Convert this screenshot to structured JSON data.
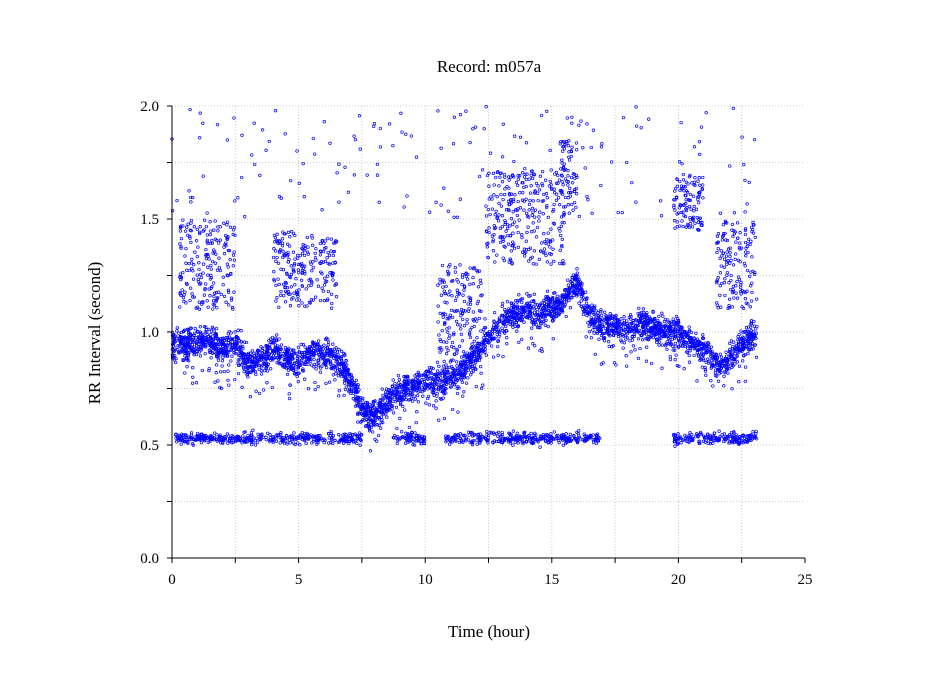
{
  "chart_data": {
    "type": "scatter",
    "title": "Record:  m057a",
    "xlabel": "Time (hour)",
    "ylabel": "RR Interval (second)",
    "xlim": [
      0,
      25
    ],
    "ylim": [
      0,
      2.0
    ],
    "xticks": [
      0,
      5,
      10,
      15,
      20,
      25
    ],
    "yticks": [
      0.0,
      0.5,
      1.0,
      1.5,
      2.0
    ],
    "xtick_labels": [
      "0",
      "5",
      "10",
      "15",
      "20",
      "25"
    ],
    "ytick_labels": [
      "0.0",
      "0.5",
      "1.0",
      "1.5",
      "2.0"
    ],
    "grid": true,
    "marker_color": "#0000ff",
    "series": [
      {
        "trend": [
          [
            0.0,
            0.93
          ],
          [
            0.5,
            0.95
          ],
          [
            1.0,
            0.95
          ],
          [
            1.5,
            0.97
          ],
          [
            2.0,
            0.92
          ],
          [
            2.5,
            0.96
          ],
          [
            3.0,
            0.86
          ],
          [
            3.5,
            0.88
          ],
          [
            4.0,
            0.93
          ],
          [
            4.5,
            0.88
          ],
          [
            5.0,
            0.87
          ],
          [
            5.5,
            0.91
          ],
          [
            6.0,
            0.9
          ],
          [
            6.5,
            0.88
          ],
          [
            7.0,
            0.8
          ],
          [
            7.5,
            0.66
          ],
          [
            8.0,
            0.63
          ],
          [
            8.5,
            0.7
          ],
          [
            9.0,
            0.74
          ],
          [
            9.5,
            0.76
          ],
          [
            10.0,
            0.8
          ],
          [
            10.5,
            0.78
          ],
          [
            11.0,
            0.8
          ],
          [
            11.5,
            0.84
          ],
          [
            12.0,
            0.9
          ],
          [
            12.5,
            0.96
          ],
          [
            13.0,
            1.05
          ],
          [
            13.5,
            1.08
          ],
          [
            14.0,
            1.1
          ],
          [
            14.5,
            1.08
          ],
          [
            15.0,
            1.1
          ],
          [
            15.5,
            1.15
          ],
          [
            16.0,
            1.22
          ],
          [
            16.5,
            1.06
          ],
          [
            17.0,
            1.03
          ],
          [
            17.5,
            1.02
          ],
          [
            18.0,
            1.01
          ],
          [
            18.5,
            1.03
          ],
          [
            19.0,
            1.02
          ],
          [
            19.5,
            1.0
          ],
          [
            20.0,
            1.0
          ],
          [
            20.5,
            0.96
          ],
          [
            21.0,
            0.92
          ],
          [
            21.5,
            0.86
          ],
          [
            22.0,
            0.88
          ],
          [
            22.5,
            0.94
          ],
          [
            23.0,
            1.0
          ],
          [
            23.1,
            0.98
          ]
        ],
        "lower_band_y": 0.53,
        "lower_band_ranges": [
          [
            0.1,
            7.5
          ],
          [
            8.7,
            10.0
          ],
          [
            10.8,
            16.9
          ],
          [
            19.8,
            23.1
          ]
        ],
        "upper_clusters": [
          {
            "x": [
              0.3,
              2.5
            ],
            "y": [
              1.1,
              1.5
            ]
          },
          {
            "x": [
              4.0,
              6.5
            ],
            "y": [
              1.1,
              1.45
            ]
          },
          {
            "x": [
              10.5,
              12.4
            ],
            "y": [
              0.9,
              1.3
            ]
          },
          {
            "x": [
              12.4,
              15.5
            ],
            "y": [
              1.3,
              1.72
            ]
          },
          {
            "x": [
              15.3,
              16.0
            ],
            "y": [
              1.55,
              1.85
            ]
          },
          {
            "x": [
              19.8,
              21.0
            ],
            "y": [
              1.45,
              1.7
            ]
          },
          {
            "x": [
              21.5,
              23.1
            ],
            "y": [
              1.1,
              1.5
            ]
          }
        ],
        "outlier_range": {
          "y": [
            1.5,
            2.0
          ]
        }
      }
    ]
  }
}
